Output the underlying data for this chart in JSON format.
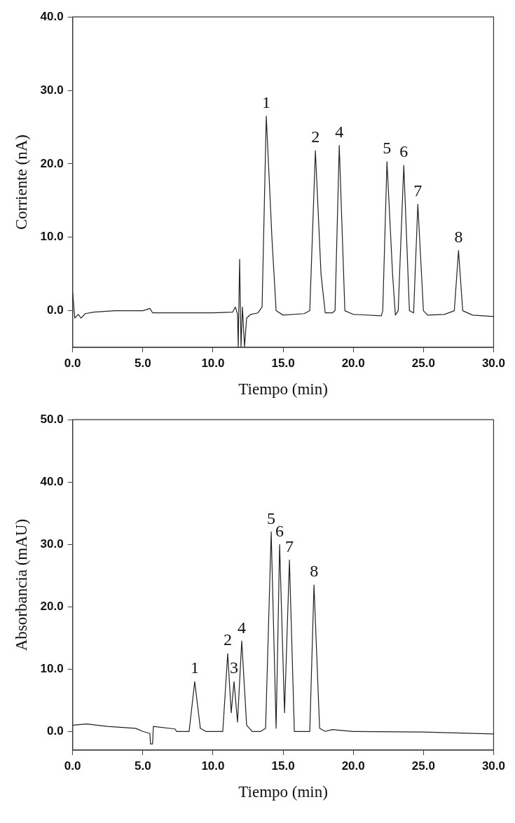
{
  "chart_data": [
    {
      "type": "line",
      "xlabel": "Tiempo (min)",
      "ylabel": "Corriente (nA)",
      "xlim": [
        0,
        30
      ],
      "ylim": [
        -5,
        40
      ],
      "xticks": [
        {
          "value": 0,
          "label": "0.0"
        },
        {
          "value": 5,
          "label": "5.0"
        },
        {
          "value": 10,
          "label": "10.0"
        },
        {
          "value": 15,
          "label": "15.0"
        },
        {
          "value": 20,
          "label": "20.0"
        },
        {
          "value": 25,
          "label": "25.0"
        },
        {
          "value": 30,
          "label": "30.0"
        }
      ],
      "yticks": [
        {
          "value": 0,
          "label": "0.0"
        },
        {
          "value": 10,
          "label": "10.0"
        },
        {
          "value": 20,
          "label": "20.0"
        },
        {
          "value": 30,
          "label": "30.0"
        },
        {
          "value": 40,
          "label": "40.0"
        }
      ],
      "grid": false,
      "legend": false,
      "marker": "none",
      "line_style": "solid",
      "series": [
        {
          "color": "#222222",
          "x": [
            0,
            0.15,
            0.4,
            0.6,
            0.9,
            1.5,
            3,
            5,
            5.5,
            5.7,
            8,
            10,
            11.4,
            11.6,
            11.75,
            11.8,
            11.9,
            12.0,
            12.1,
            12.25,
            12.4,
            12.7,
            13.2,
            13.5,
            13.8,
            14.2,
            14.5,
            15,
            16.5,
            16.9,
            17.3,
            17.7,
            18.0,
            18.5,
            18.7,
            19.0,
            19.4,
            20,
            22,
            22.1,
            22.4,
            22.8,
            23.0,
            23.2,
            23.6,
            24.0,
            24.3,
            24.6,
            25.0,
            25.3,
            26.5,
            27.2,
            27.5,
            27.8,
            28.5,
            30
          ],
          "values": [
            2.5,
            -1,
            -0.5,
            -1,
            -0.4,
            -0.2,
            0,
            0,
            0.3,
            -0.3,
            -0.3,
            -0.3,
            -0.2,
            0.5,
            -0.5,
            -4.9,
            7,
            -4.9,
            0.5,
            -4.9,
            -1,
            -0.5,
            -0.3,
            0.5,
            26.5,
            10,
            0,
            -0.6,
            -0.4,
            0,
            21.8,
            5,
            -0.3,
            -0.3,
            0,
            22.5,
            0,
            -0.5,
            -0.7,
            0,
            20.3,
            5,
            -0.6,
            0,
            19.8,
            0,
            -0.3,
            14.5,
            0,
            -0.6,
            -0.5,
            0,
            8.2,
            0,
            -0.6,
            -0.8
          ]
        }
      ],
      "annotations": [
        {
          "text": "1",
          "x": 13.8,
          "y": 26.5
        },
        {
          "text": "2",
          "x": 17.3,
          "y": 21.8
        },
        {
          "text": "4",
          "x": 19.0,
          "y": 22.5
        },
        {
          "text": "5",
          "x": 22.4,
          "y": 20.3
        },
        {
          "text": "6",
          "x": 23.6,
          "y": 19.8
        },
        {
          "text": "7",
          "x": 24.6,
          "y": 14.5
        },
        {
          "text": "8",
          "x": 27.5,
          "y": 8.2
        }
      ]
    },
    {
      "type": "line",
      "xlabel": "Tiempo (min)",
      "ylabel": "Absorbancia (mAU)",
      "xlim": [
        0,
        30
      ],
      "ylim": [
        -3,
        50
      ],
      "xticks": [
        {
          "value": 0,
          "label": "0.0"
        },
        {
          "value": 5,
          "label": "5.0"
        },
        {
          "value": 10,
          "label": "10.0"
        },
        {
          "value": 15,
          "label": "15.0"
        },
        {
          "value": 20,
          "label": "20.0"
        },
        {
          "value": 25,
          "label": "25.0"
        },
        {
          "value": 30,
          "label": "30.0"
        }
      ],
      "yticks": [
        {
          "value": 0,
          "label": "0.0"
        },
        {
          "value": 10,
          "label": "10.0"
        },
        {
          "value": 20,
          "label": "20.0"
        },
        {
          "value": 30,
          "label": "30.0"
        },
        {
          "value": 40,
          "label": "40.0"
        },
        {
          "value": 50,
          "label": "50.0"
        }
      ],
      "grid": false,
      "legend": false,
      "marker": "none",
      "line_style": "solid",
      "series": [
        {
          "color": "#222222",
          "x": [
            0,
            1,
            2.5,
            4.5,
            5,
            5.5,
            5.55,
            5.7,
            5.75,
            7.3,
            7.4,
            8.3,
            8.7,
            9.1,
            9.5,
            10.7,
            11.05,
            11.3,
            11.5,
            11.75,
            12.05,
            12.4,
            12.8,
            13.4,
            13.75,
            14.15,
            14.5,
            14.75,
            15.1,
            15.45,
            15.8,
            16.9,
            17.2,
            17.6,
            18,
            18.5,
            20,
            25,
            30
          ],
          "values": [
            1,
            1.2,
            0.8,
            0.5,
            0,
            -0.3,
            -2,
            -2,
            0.8,
            0.4,
            0,
            0,
            8,
            0.5,
            0,
            0,
            12.5,
            3,
            8,
            1.5,
            14.5,
            1,
            0,
            0,
            0.5,
            32,
            0.5,
            30,
            3,
            27.5,
            0,
            0,
            23.5,
            0.5,
            0,
            0.3,
            0,
            -0.1,
            -0.4
          ]
        }
      ],
      "annotations": [
        {
          "text": "1",
          "x": 8.7,
          "y": 8
        },
        {
          "text": "2",
          "x": 11.05,
          "y": 12.5
        },
        {
          "text": "3",
          "x": 11.5,
          "y": 8
        },
        {
          "text": "4",
          "x": 12.05,
          "y": 14.5
        },
        {
          "text": "5",
          "x": 14.15,
          "y": 32
        },
        {
          "text": "6",
          "x": 14.75,
          "y": 30
        },
        {
          "text": "7",
          "x": 15.45,
          "y": 27.5
        },
        {
          "text": "8",
          "x": 17.2,
          "y": 23.5
        }
      ]
    }
  ]
}
